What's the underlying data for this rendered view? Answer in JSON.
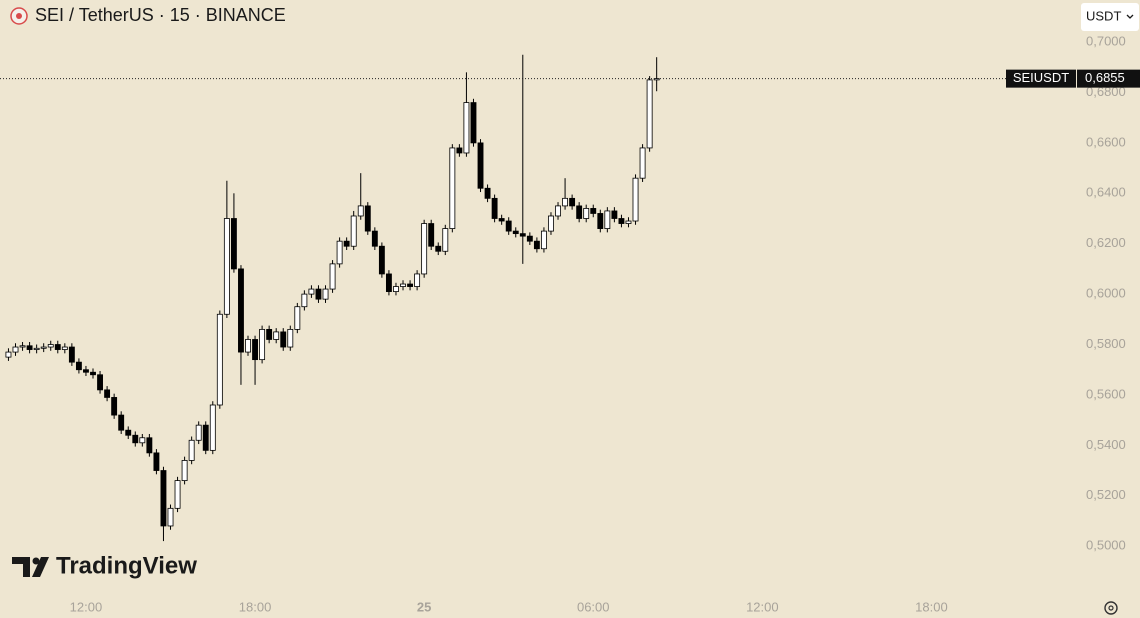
{
  "chart_data": {
    "type": "candlestick",
    "title": "SEI / TetherUS · 15 · BINANCE",
    "currency": "USDT",
    "watermark": "TradingView",
    "colors": {
      "up": "#ffffff",
      "down": "#000000",
      "outline": "#000000",
      "background": "#eee6d1"
    },
    "price_line": {
      "name": "SEIUSDT",
      "value": 0.6855,
      "label": "0,6855"
    },
    "xlim": [
      8.95,
      47.2
    ],
    "ylim": [
      0.4818,
      0.7167
    ],
    "xticks": [
      {
        "value": 12,
        "label": "12:00"
      },
      {
        "value": 18,
        "label": "18:00"
      },
      {
        "value": 24,
        "label": "25"
      },
      {
        "value": 30,
        "label": "06:00"
      },
      {
        "value": 36,
        "label": "12:00"
      },
      {
        "value": 42,
        "label": "18:00"
      }
    ],
    "yticks": [
      {
        "value": 0.5,
        "label": "0,5000"
      },
      {
        "value": 0.52,
        "label": "0,5200"
      },
      {
        "value": 0.54,
        "label": "0,5400"
      },
      {
        "value": 0.56,
        "label": "0,5600"
      },
      {
        "value": 0.58,
        "label": "0,5800"
      },
      {
        "value": 0.6,
        "label": "0,6000"
      },
      {
        "value": 0.62,
        "label": "0,6200"
      },
      {
        "value": 0.64,
        "label": "0,6400"
      },
      {
        "value": 0.66,
        "label": "0,6600"
      },
      {
        "value": 0.68,
        "label": "0,6800"
      },
      {
        "value": 0.7,
        "label": "0,7000"
      }
    ],
    "x": [
      9.25,
      9.5,
      9.75,
      10,
      10.25,
      10.5,
      10.75,
      11,
      11.25,
      11.5,
      11.75,
      12,
      12.25,
      12.5,
      12.75,
      13,
      13.25,
      13.5,
      13.75,
      14,
      14.25,
      14.5,
      14.75,
      15,
      15.25,
      15.5,
      15.75,
      16,
      16.25,
      16.5,
      16.75,
      17,
      17.25,
      17.5,
      17.75,
      18,
      18.25,
      18.5,
      18.75,
      19,
      19.25,
      19.5,
      19.75,
      20,
      20.25,
      20.5,
      20.75,
      21,
      21.25,
      21.5,
      21.75,
      22,
      22.25,
      22.5,
      22.75,
      23,
      23.25,
      23.5,
      23.75,
      24,
      24.25,
      24.5,
      24.75,
      25,
      25.25,
      25.5,
      25.75,
      26,
      26.25,
      26.5,
      26.75,
      27,
      27.25,
      27.5,
      27.75,
      28,
      28.25,
      28.5,
      28.75,
      29,
      29.25,
      29.5,
      29.75,
      30,
      30.25,
      30.5,
      30.75,
      31,
      31.25,
      31.5,
      31.75,
      32,
      32.25
    ],
    "open": [
      0.575,
      0.577,
      0.579,
      0.5795,
      0.578,
      0.5785,
      0.579,
      0.58,
      0.578,
      0.579,
      0.573,
      0.57,
      0.569,
      0.568,
      0.562,
      0.559,
      0.552,
      0.546,
      0.544,
      0.541,
      0.543,
      0.537,
      0.53,
      0.508,
      0.515,
      0.526,
      0.534,
      0.542,
      0.548,
      0.538,
      0.556,
      0.592,
      0.63,
      0.61,
      0.577,
      0.582,
      0.574,
      0.586,
      0.582,
      0.585,
      0.579,
      0.586,
      0.595,
      0.6,
      0.602,
      0.598,
      0.602,
      0.612,
      0.621,
      0.619,
      0.631,
      0.635,
      0.625,
      0.619,
      0.608,
      0.601,
      0.603,
      0.604,
      0.603,
      0.608,
      0.628,
      0.619,
      0.617,
      0.626,
      0.658,
      0.656,
      0.676,
      0.66,
      0.642,
      0.638,
      0.63,
      0.629,
      0.625,
      0.624,
      0.623,
      0.621,
      0.618,
      0.625,
      0.631,
      0.635,
      0.638,
      0.635,
      0.63,
      0.634,
      0.632,
      0.626,
      0.633,
      0.63,
      0.628,
      0.629,
      0.646,
      0.658,
      0.685
    ],
    "high": [
      0.5785,
      0.5805,
      0.581,
      0.581,
      0.58,
      0.5805,
      0.5815,
      0.5815,
      0.5805,
      0.5805,
      0.5745,
      0.5715,
      0.5705,
      0.5695,
      0.5635,
      0.5605,
      0.5535,
      0.5475,
      0.5455,
      0.5445,
      0.5445,
      0.5385,
      0.5315,
      0.5165,
      0.5275,
      0.5355,
      0.5435,
      0.5495,
      0.5495,
      0.5575,
      0.5935,
      0.645,
      0.64,
      0.6115,
      0.5835,
      0.5835,
      0.5875,
      0.5875,
      0.5865,
      0.5865,
      0.5875,
      0.5965,
      0.6015,
      0.6035,
      0.6035,
      0.6035,
      0.6135,
      0.6225,
      0.6225,
      0.633,
      0.648,
      0.6365,
      0.6265,
      0.6205,
      0.6095,
      0.6045,
      0.6055,
      0.6055,
      0.6095,
      0.6295,
      0.6295,
      0.6205,
      0.6275,
      0.6595,
      0.6595,
      0.688,
      0.6775,
      0.6615,
      0.6435,
      0.6395,
      0.6315,
      0.6305,
      0.6265,
      0.695,
      0.6245,
      0.6225,
      0.6265,
      0.6325,
      0.6365,
      0.646,
      0.6395,
      0.6365,
      0.6355,
      0.6355,
      0.6335,
      0.6345,
      0.6345,
      0.6315,
      0.6305,
      0.6475,
      0.6595,
      0.6865,
      0.694
    ],
    "low": [
      0.5735,
      0.5755,
      0.5775,
      0.5765,
      0.5765,
      0.577,
      0.5775,
      0.5765,
      0.5765,
      0.5715,
      0.5685,
      0.5675,
      0.5665,
      0.5605,
      0.5575,
      0.5505,
      0.5445,
      0.5425,
      0.5395,
      0.5395,
      0.5355,
      0.5285,
      0.502,
      0.5065,
      0.5135,
      0.5245,
      0.5325,
      0.5405,
      0.5365,
      0.5365,
      0.5545,
      0.5905,
      0.6085,
      0.564,
      0.5755,
      0.564,
      0.5725,
      0.5805,
      0.5805,
      0.5775,
      0.5775,
      0.5845,
      0.5935,
      0.5985,
      0.5965,
      0.5965,
      0.6005,
      0.6105,
      0.6175,
      0.6175,
      0.6295,
      0.6235,
      0.6175,
      0.6065,
      0.5995,
      0.5995,
      0.6015,
      0.6015,
      0.6015,
      0.6065,
      0.6175,
      0.6155,
      0.6155,
      0.6245,
      0.6545,
      0.6545,
      0.6585,
      0.6405,
      0.6365,
      0.6285,
      0.6275,
      0.6235,
      0.6225,
      0.612,
      0.6195,
      0.6165,
      0.6165,
      0.6235,
      0.6295,
      0.6335,
      0.6335,
      0.6285,
      0.6285,
      0.6305,
      0.6245,
      0.6245,
      0.6285,
      0.6265,
      0.6265,
      0.6275,
      0.6445,
      0.6565,
      0.6805
    ],
    "close": [
      0.577,
      0.579,
      0.5795,
      0.578,
      0.5785,
      0.579,
      0.58,
      0.578,
      0.579,
      0.573,
      0.57,
      0.569,
      0.568,
      0.562,
      0.559,
      0.552,
      0.546,
      0.544,
      0.541,
      0.543,
      0.537,
      0.53,
      0.508,
      0.515,
      0.526,
      0.534,
      0.542,
      0.548,
      0.538,
      0.556,
      0.592,
      0.63,
      0.61,
      0.577,
      0.582,
      0.574,
      0.586,
      0.582,
      0.585,
      0.579,
      0.586,
      0.595,
      0.6,
      0.602,
      0.598,
      0.602,
      0.612,
      0.621,
      0.619,
      0.631,
      0.635,
      0.625,
      0.619,
      0.608,
      0.601,
      0.603,
      0.604,
      0.603,
      0.608,
      0.628,
      0.619,
      0.617,
      0.626,
      0.658,
      0.656,
      0.676,
      0.66,
      0.642,
      0.638,
      0.63,
      0.629,
      0.625,
      0.624,
      0.623,
      0.621,
      0.618,
      0.625,
      0.631,
      0.635,
      0.638,
      0.635,
      0.63,
      0.634,
      0.632,
      0.626,
      0.633,
      0.63,
      0.628,
      0.629,
      0.646,
      0.658,
      0.685,
      0.6855
    ]
  }
}
